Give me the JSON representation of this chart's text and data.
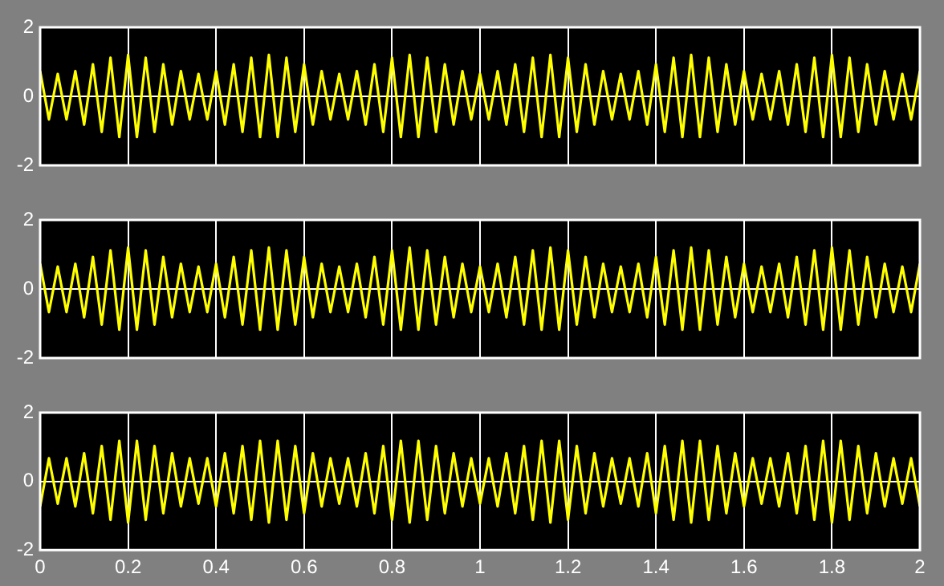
{
  "chart_data": [
    {
      "type": "line",
      "x": [
        0,
        0.02,
        0.04,
        0.06,
        0.08,
        0.1,
        0.12,
        0.14,
        0.16,
        0.18,
        0.2,
        0.22,
        0.24,
        0.26,
        0.28,
        0.3,
        0.32,
        0.34,
        0.36,
        0.38,
        0.4,
        0.42,
        0.44,
        0.46,
        0.48,
        0.5,
        0.52,
        0.54,
        0.56,
        0.58,
        0.6,
        0.62,
        0.64,
        0.66,
        0.68,
        0.7,
        0.72,
        0.74,
        0.76,
        0.78,
        0.8,
        0.82,
        0.84,
        0.86,
        0.88,
        0.9,
        0.92,
        0.94,
        0.96,
        0.98,
        1,
        1.02,
        1.04,
        1.06,
        1.08,
        1.1,
        1.12,
        1.14,
        1.16,
        1.18,
        1.2,
        1.22,
        1.24,
        1.26,
        1.28,
        1.3,
        1.32,
        1.34,
        1.36,
        1.38,
        1.4,
        1.42,
        1.44,
        1.46,
        1.48,
        1.5,
        1.52,
        1.54,
        1.56,
        1.58,
        1.6,
        1.62,
        1.64,
        1.66,
        1.68,
        1.7,
        1.72,
        1.74,
        1.76,
        1.78,
        1.8,
        1.82,
        1.84,
        1.86,
        1.88,
        1.9,
        1.92,
        1.94,
        1.96,
        1.98,
        2
      ],
      "series": [
        {
          "color": "#ffff00",
          "values": [
            0.73,
            -0.67,
            0.65,
            -0.67,
            0.73,
            -0.82,
            0.93,
            -1.03,
            1.12,
            -1.18,
            1.2,
            -1.18,
            1.12,
            -1.03,
            0.93,
            -0.82,
            0.73,
            -0.67,
            0.65,
            -0.67,
            0.73,
            -0.82,
            0.93,
            -1.03,
            1.12,
            -1.18,
            1.2,
            -1.18,
            1.12,
            -1.03,
            0.93,
            -0.82,
            0.73,
            -0.67,
            0.65,
            -0.67,
            0.73,
            -0.82,
            0.93,
            -1.03,
            1.12,
            -1.18,
            1.2,
            -1.18,
            1.12,
            -1.03,
            0.93,
            -0.82,
            0.73,
            -0.67,
            0.65,
            -0.67,
            0.73,
            -0.82,
            0.93,
            -1.03,
            1.12,
            -1.18,
            1.2,
            -1.18,
            1.12,
            -1.03,
            0.93,
            -0.82,
            0.73,
            -0.67,
            0.65,
            -0.67,
            0.73,
            -0.82,
            0.93,
            -1.03,
            1.12,
            -1.18,
            1.2,
            -1.18,
            1.12,
            -1.03,
            0.93,
            -0.82,
            0.73,
            -0.67,
            0.65,
            -0.67,
            0.73,
            -0.82,
            0.93,
            -1.03,
            1.12,
            -1.18,
            1.2,
            -1.18,
            1.12,
            -1.03,
            0.93,
            -0.82,
            0.73,
            -0.67,
            0.65,
            -0.67,
            0.73
          ]
        }
      ],
      "xlim": [
        0,
        2
      ],
      "xticks": [
        0,
        0.2,
        0.4,
        0.6,
        0.8,
        1,
        1.2,
        1.4,
        1.6,
        1.8,
        2
      ],
      "ylim": [
        -2,
        2
      ],
      "yticks": [
        -2,
        0,
        2
      ],
      "grid": true,
      "tick_labels": "y"
    },
    {
      "type": "line",
      "x": [
        0,
        0.02,
        0.04,
        0.06,
        0.08,
        0.1,
        0.12,
        0.14,
        0.16,
        0.18,
        0.2,
        0.22,
        0.24,
        0.26,
        0.28,
        0.3,
        0.32,
        0.34,
        0.36,
        0.38,
        0.4,
        0.42,
        0.44,
        0.46,
        0.48,
        0.5,
        0.52,
        0.54,
        0.56,
        0.58,
        0.6,
        0.62,
        0.64,
        0.66,
        0.68,
        0.7,
        0.72,
        0.74,
        0.76,
        0.78,
        0.8,
        0.82,
        0.84,
        0.86,
        0.88,
        0.9,
        0.92,
        0.94,
        0.96,
        0.98,
        1,
        1.02,
        1.04,
        1.06,
        1.08,
        1.1,
        1.12,
        1.14,
        1.16,
        1.18,
        1.2,
        1.22,
        1.24,
        1.26,
        1.28,
        1.3,
        1.32,
        1.34,
        1.36,
        1.38,
        1.4,
        1.42,
        1.44,
        1.46,
        1.48,
        1.5,
        1.52,
        1.54,
        1.56,
        1.58,
        1.6,
        1.62,
        1.64,
        1.66,
        1.68,
        1.7,
        1.72,
        1.74,
        1.76,
        1.78,
        1.8,
        1.82,
        1.84,
        1.86,
        1.88,
        1.9,
        1.92,
        1.94,
        1.96,
        1.98,
        2
      ],
      "series": [
        {
          "color": "#ffff00",
          "values": [
            0.73,
            -0.67,
            0.65,
            -0.67,
            0.73,
            -0.82,
            0.93,
            -1.03,
            1.12,
            -1.18,
            1.2,
            -1.18,
            1.12,
            -1.03,
            0.93,
            -0.82,
            0.73,
            -0.67,
            0.65,
            -0.67,
            0.73,
            -0.82,
            0.93,
            -1.03,
            1.12,
            -1.18,
            1.2,
            -1.18,
            1.12,
            -1.03,
            0.93,
            -0.82,
            0.73,
            -0.67,
            0.65,
            -0.67,
            0.73,
            -0.82,
            0.93,
            -1.03,
            1.12,
            -1.18,
            1.2,
            -1.18,
            1.12,
            -1.03,
            0.93,
            -0.82,
            0.73,
            -0.67,
            0.65,
            -0.67,
            0.73,
            -0.82,
            0.93,
            -1.03,
            1.12,
            -1.18,
            1.2,
            -1.18,
            1.12,
            -1.03,
            0.93,
            -0.82,
            0.73,
            -0.67,
            0.65,
            -0.67,
            0.73,
            -0.82,
            0.93,
            -1.03,
            1.12,
            -1.18,
            1.2,
            -1.18,
            1.12,
            -1.03,
            0.93,
            -0.82,
            0.73,
            -0.67,
            0.65,
            -0.67,
            0.73,
            -0.82,
            0.93,
            -1.03,
            1.12,
            -1.18,
            1.2,
            -1.18,
            1.12,
            -1.03,
            0.93,
            -0.82,
            0.73,
            -0.67,
            0.65,
            -0.67,
            0.73
          ]
        }
      ],
      "xlim": [
        0,
        2
      ],
      "xticks": [
        0,
        0.2,
        0.4,
        0.6,
        0.8,
        1,
        1.2,
        1.4,
        1.6,
        1.8,
        2
      ],
      "ylim": [
        -2,
        2
      ],
      "yticks": [
        -2,
        0,
        2
      ],
      "grid": true,
      "tick_labels": "y"
    },
    {
      "type": "line",
      "x": [
        0,
        0.02,
        0.04,
        0.06,
        0.08,
        0.1,
        0.12,
        0.14,
        0.16,
        0.18,
        0.2,
        0.22,
        0.24,
        0.26,
        0.28,
        0.3,
        0.32,
        0.34,
        0.36,
        0.38,
        0.4,
        0.42,
        0.44,
        0.46,
        0.48,
        0.5,
        0.52,
        0.54,
        0.56,
        0.58,
        0.6,
        0.62,
        0.64,
        0.66,
        0.68,
        0.7,
        0.72,
        0.74,
        0.76,
        0.78,
        0.8,
        0.82,
        0.84,
        0.86,
        0.88,
        0.9,
        0.92,
        0.94,
        0.96,
        0.98,
        1,
        1.02,
        1.04,
        1.06,
        1.08,
        1.1,
        1.12,
        1.14,
        1.16,
        1.18,
        1.2,
        1.22,
        1.24,
        1.26,
        1.28,
        1.3,
        1.32,
        1.34,
        1.36,
        1.38,
        1.4,
        1.42,
        1.44,
        1.46,
        1.48,
        1.5,
        1.52,
        1.54,
        1.56,
        1.58,
        1.6,
        1.62,
        1.64,
        1.66,
        1.68,
        1.7,
        1.72,
        1.74,
        1.76,
        1.78,
        1.8,
        1.82,
        1.84,
        1.86,
        1.88,
        1.9,
        1.92,
        1.94,
        1.96,
        1.98,
        2
      ],
      "series": [
        {
          "color": "#ffff00",
          "values": [
            -0.73,
            0.67,
            -0.65,
            0.67,
            -0.73,
            0.82,
            -0.93,
            1.03,
            -1.12,
            1.18,
            -1.2,
            1.18,
            -1.12,
            1.03,
            -0.93,
            0.82,
            -0.73,
            0.67,
            -0.65,
            0.67,
            -0.73,
            0.82,
            -0.93,
            1.03,
            -1.12,
            1.18,
            -1.2,
            1.18,
            -1.12,
            1.03,
            -0.93,
            0.82,
            -0.73,
            0.67,
            -0.65,
            0.67,
            -0.73,
            0.82,
            -0.93,
            1.03,
            -1.12,
            1.18,
            -1.2,
            1.18,
            -1.12,
            1.03,
            -0.93,
            0.82,
            -0.73,
            0.67,
            -0.65,
            0.67,
            -0.73,
            0.82,
            -0.93,
            1.03,
            -1.12,
            1.18,
            -1.2,
            1.18,
            -1.12,
            1.03,
            -0.93,
            0.82,
            -0.73,
            0.67,
            -0.65,
            0.67,
            -0.73,
            0.82,
            -0.93,
            1.03,
            -1.12,
            1.18,
            -1.2,
            1.18,
            -1.12,
            1.03,
            -0.93,
            0.82,
            -0.73,
            0.67,
            -0.65,
            0.67,
            -0.73,
            0.82,
            -0.93,
            1.03,
            -1.12,
            1.18,
            -1.2,
            1.18,
            -1.12,
            1.03,
            -0.93,
            0.82,
            -0.73,
            0.67,
            -0.65,
            0.67,
            -0.73
          ]
        }
      ],
      "xlim": [
        0,
        2
      ],
      "xticks": [
        0,
        0.2,
        0.4,
        0.6,
        0.8,
        1,
        1.2,
        1.4,
        1.6,
        1.8,
        2
      ],
      "ylim": [
        -2,
        2
      ],
      "yticks": [
        -2,
        0,
        2
      ],
      "grid": true
    }
  ]
}
